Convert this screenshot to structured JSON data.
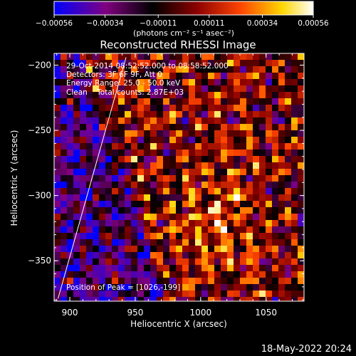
{
  "chart_data": {
    "type": "heatmap",
    "title": "Reconstructed RHESSI Image",
    "xlabel": "Heliocentric X (arcsec)",
    "ylabel": "Heliocentric Y (arcsec)",
    "xlim": [
      888,
      1079
    ],
    "ylim": [
      -381,
      -191
    ],
    "x_ticks": [
      {
        "value": 900,
        "label": "900"
      },
      {
        "value": 950,
        "label": "950"
      },
      {
        "value": 1000,
        "label": "1000"
      },
      {
        "value": 1050,
        "label": "1050"
      }
    ],
    "y_ticks": [
      {
        "value": -200,
        "label": "−200"
      },
      {
        "value": -250,
        "label": "−250"
      },
      {
        "value": -300,
        "label": "−300"
      },
      {
        "value": -350,
        "label": "−350"
      }
    ],
    "colorbar": {
      "min": -0.00056,
      "max": 0.00056,
      "ticks": [
        {
          "value": -0.00056,
          "label": "−0.00056"
        },
        {
          "value": -0.00034,
          "label": "−0.00034"
        },
        {
          "value": -0.00011,
          "label": "−0.00011"
        },
        {
          "value": 0.00011,
          "label": "0.00011"
        },
        {
          "value": 0.00034,
          "label": "0.00034"
        },
        {
          "value": 0.00056,
          "label": "0.00056"
        }
      ],
      "unit_label": "(photons cm⁻² s⁻¹ asec⁻²)",
      "colors": [
        "#0000ff",
        "#800080",
        "#000000",
        "#8b0000",
        "#ff4500",
        "#ffd700",
        "#ffffff"
      ]
    },
    "annotations": [
      "29-Oct-2014 08:52:52.000 to 08:58:52.000",
      "Detectors: 3F 6F 9F, Att 0",
      "Energy Range: 25.0 - 50.0 keV",
      "Clean    Total counts: 2.87E+03"
    ],
    "peak_label": "Position of Peak = [1026,-199]",
    "limb_line": [
      [
        891,
        -379
      ],
      [
        943,
        -194
      ]
    ]
  },
  "footer": {
    "timestamp": "18-May-2022 20:24"
  }
}
